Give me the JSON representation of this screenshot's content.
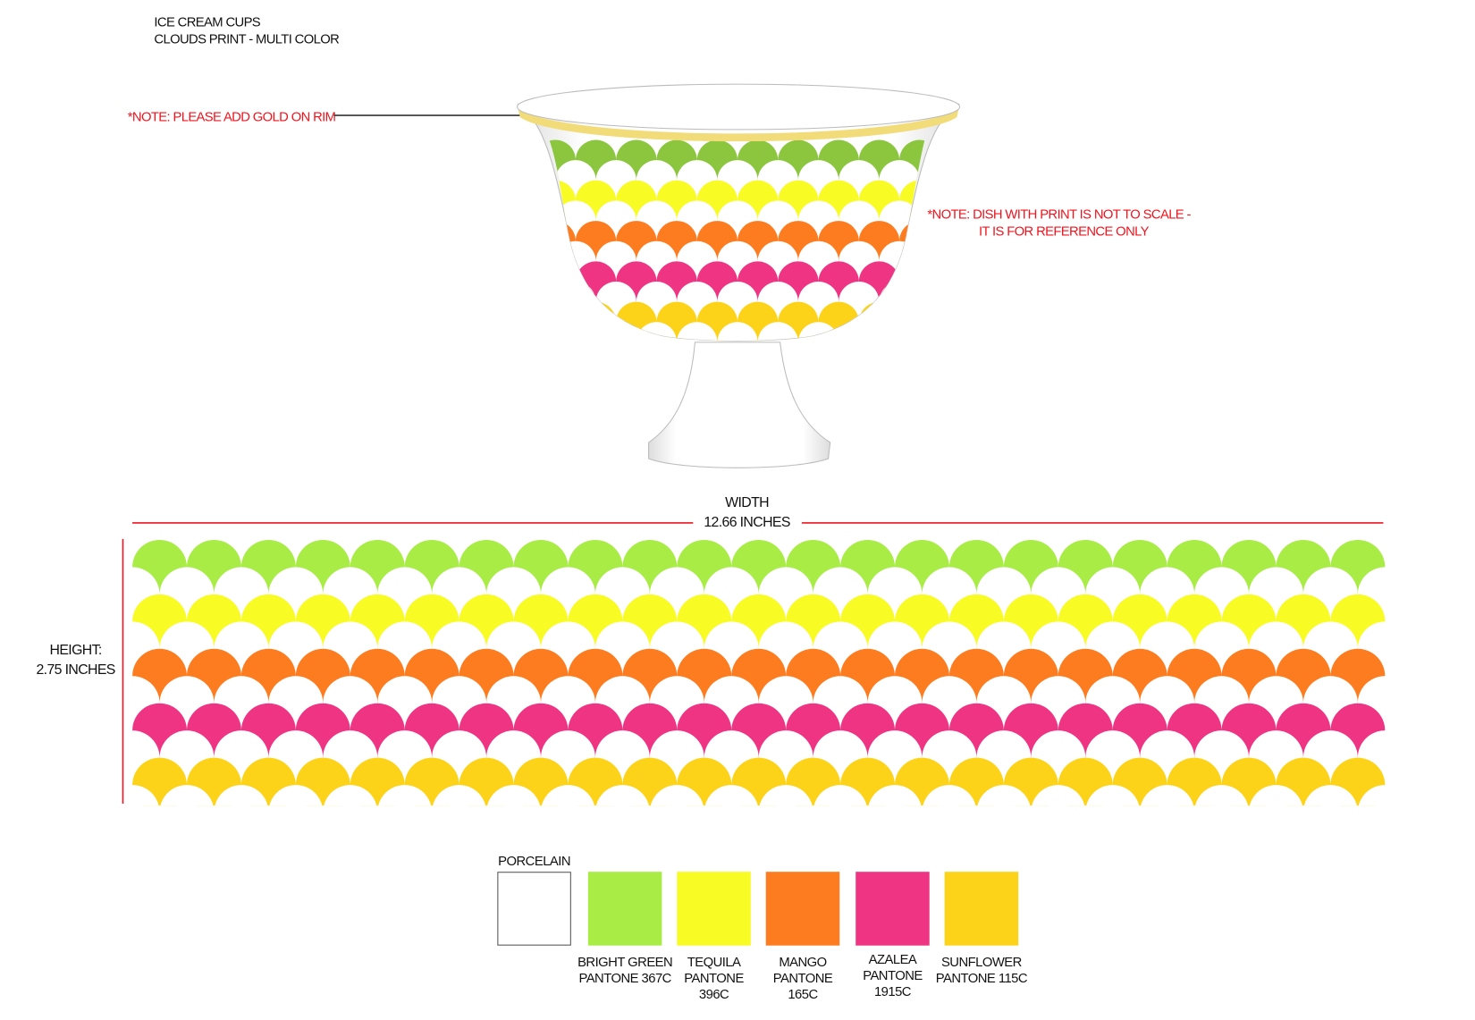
{
  "title": {
    "line1": "ICE CREAM CUPS",
    "line2": "CLOUDS PRINT - MULTI COLOR"
  },
  "notes": {
    "rim": "*NOTE: PLEASE ADD GOLD ON RIM",
    "scale_line1": "*NOTE: DISH WITH PRINT IS NOT TO SCALE -",
    "scale_line2": "IT IS FOR REFERENCE ONLY"
  },
  "dimensions": {
    "width_label": "WIDTH",
    "width_value": "12.66 INCHES",
    "height_label": "HEIGHT:",
    "height_value": "2.75 INCHES"
  },
  "colors": {
    "rim_gold": "#f2dc7a",
    "line_red": "#f0141e",
    "cup_green": "#8cc63f"
  },
  "print_rows": [
    "#a8ec45",
    "#f8fb24",
    "#fd7c20",
    "#ee3482",
    "#fdd319"
  ],
  "swatches": [
    {
      "name": "PORCELAIN",
      "color": "#ffffff",
      "line1": "PORCELAIN"
    },
    {
      "name": "BRIGHT GREEN",
      "color": "#a8ec45",
      "line1": "BRIGHT GREEN",
      "line2": "PANTONE 367C"
    },
    {
      "name": "TEQUILA",
      "color": "#f8fb24",
      "line1": "TEQUILA",
      "line2": "PANTONE",
      "line3": "396C"
    },
    {
      "name": "MANGO",
      "color": "#fd7c20",
      "line1": "MANGO",
      "line2": "PANTONE",
      "line3": "165C"
    },
    {
      "name": "AZALEA",
      "color": "#ee3482",
      "line1": "AZALEA",
      "line2": "PANTONE",
      "line3": "1915C"
    },
    {
      "name": "SUNFLOWER",
      "color": "#fdd319",
      "line1": "SUNFLOWER",
      "line2": "PANTONE 115C"
    }
  ]
}
